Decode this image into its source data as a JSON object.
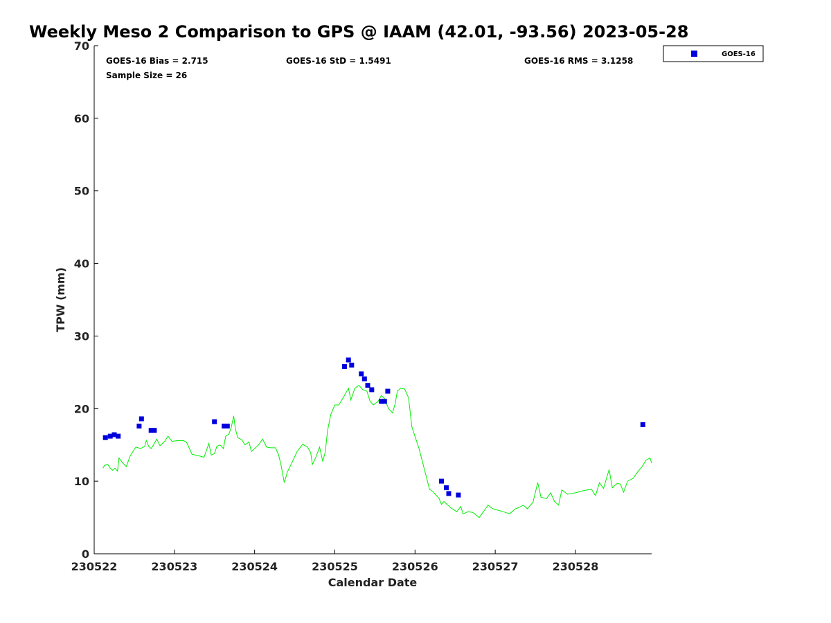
{
  "chart_data": {
    "type": "scatter",
    "title": "Weekly Meso 2 Comparison to GPS @ IAAM (42.01, -93.56) 2023-05-28",
    "xlabel": "Calendar Date",
    "ylabel": "TPW (mm)",
    "xlim": [
      230522,
      230528.95
    ],
    "ylim": [
      0,
      70
    ],
    "x_tick_labels": [
      "230522",
      "230523",
      "230524",
      "230525",
      "230526",
      "230527",
      "230528"
    ],
    "y_tick_labels": [
      "0",
      "10",
      "20",
      "30",
      "40",
      "50",
      "60",
      "70"
    ],
    "grid": false,
    "legend_position": "top-right",
    "stats": {
      "bias": "GOES-16 Bias = 2.715",
      "std": "GOES-16 StD = 1.5491",
      "rms": "GOES-16 RMS = 3.1258",
      "sample_size": "Sample Size = 26"
    },
    "series": [
      {
        "name": "GOES-16",
        "marker": "square",
        "color": "#0000dd",
        "points": [
          [
            230522.14,
            16.0
          ],
          [
            230522.2,
            16.2
          ],
          [
            230522.25,
            16.4
          ],
          [
            230522.3,
            16.2
          ],
          [
            230522.56,
            17.6
          ],
          [
            230522.59,
            18.6
          ],
          [
            230522.71,
            17.0
          ],
          [
            230522.75,
            17.0
          ],
          [
            230523.5,
            18.2
          ],
          [
            230523.62,
            17.6
          ],
          [
            230523.66,
            17.6
          ],
          [
            230525.12,
            25.8
          ],
          [
            230525.17,
            26.7
          ],
          [
            230525.21,
            26.0
          ],
          [
            230525.33,
            24.8
          ],
          [
            230525.37,
            24.1
          ],
          [
            230525.41,
            23.2
          ],
          [
            230525.46,
            22.6
          ],
          [
            230525.58,
            21.0
          ],
          [
            230525.62,
            21.0
          ],
          [
            230525.66,
            22.4
          ],
          [
            230526.33,
            10.0
          ],
          [
            230526.39,
            9.1
          ],
          [
            230526.42,
            8.3
          ],
          [
            230526.54,
            8.1
          ],
          [
            230528.84,
            17.8
          ]
        ]
      },
      {
        "role": "gps-reference-line",
        "color": "#00ee00",
        "points": [
          [
            230522.11,
            11.8
          ],
          [
            230522.13,
            12.2
          ],
          [
            230522.17,
            12.3
          ],
          [
            230522.2,
            11.8
          ],
          [
            230522.23,
            11.5
          ],
          [
            230522.26,
            11.8
          ],
          [
            230522.29,
            11.4
          ],
          [
            230522.31,
            13.2
          ],
          [
            230522.35,
            12.6
          ],
          [
            230522.4,
            12.0
          ],
          [
            230522.45,
            13.5
          ],
          [
            230522.52,
            14.7
          ],
          [
            230522.58,
            14.5
          ],
          [
            230522.63,
            14.8
          ],
          [
            230522.65,
            15.6
          ],
          [
            230522.68,
            14.8
          ],
          [
            230522.71,
            14.5
          ],
          [
            230522.74,
            15.0
          ],
          [
            230522.78,
            15.8
          ],
          [
            230522.82,
            14.9
          ],
          [
            230522.88,
            15.5
          ],
          [
            230522.92,
            16.2
          ],
          [
            230522.97,
            15.5
          ],
          [
            230523.05,
            15.6
          ],
          [
            230523.11,
            15.6
          ],
          [
            230523.15,
            15.4
          ],
          [
            230523.22,
            13.7
          ],
          [
            230523.3,
            13.5
          ],
          [
            230523.37,
            13.3
          ],
          [
            230523.43,
            15.2
          ],
          [
            230523.46,
            13.6
          ],
          [
            230523.5,
            13.8
          ],
          [
            230523.53,
            14.8
          ],
          [
            230523.57,
            15.0
          ],
          [
            230523.61,
            14.5
          ],
          [
            230523.64,
            16.2
          ],
          [
            230523.68,
            16.5
          ],
          [
            230523.71,
            17.5
          ],
          [
            230523.74,
            19.0
          ],
          [
            230523.76,
            17.2
          ],
          [
            230523.79,
            16.0
          ],
          [
            230523.84,
            15.7
          ],
          [
            230523.88,
            15.0
          ],
          [
            230523.93,
            15.4
          ],
          [
            230523.96,
            14.1
          ],
          [
            230524.05,
            15.0
          ],
          [
            230524.1,
            15.8
          ],
          [
            230524.15,
            14.7
          ],
          [
            230524.2,
            14.6
          ],
          [
            230524.26,
            14.6
          ],
          [
            230524.3,
            13.6
          ],
          [
            230524.33,
            12.2
          ],
          [
            230524.37,
            9.8
          ],
          [
            230524.41,
            11.3
          ],
          [
            230524.48,
            12.9
          ],
          [
            230524.53,
            14.1
          ],
          [
            230524.6,
            15.1
          ],
          [
            230524.66,
            14.7
          ],
          [
            230524.7,
            13.9
          ],
          [
            230524.72,
            12.3
          ],
          [
            230524.76,
            13.2
          ],
          [
            230524.81,
            14.7
          ],
          [
            230524.85,
            12.7
          ],
          [
            230524.88,
            14.0
          ],
          [
            230524.91,
            17.0
          ],
          [
            230524.95,
            19.2
          ],
          [
            230525.0,
            20.5
          ],
          [
            230525.05,
            20.5
          ],
          [
            230525.12,
            21.8
          ],
          [
            230525.17,
            22.8
          ],
          [
            230525.2,
            21.2
          ],
          [
            230525.25,
            22.8
          ],
          [
            230525.3,
            23.2
          ],
          [
            230525.35,
            22.6
          ],
          [
            230525.4,
            22.4
          ],
          [
            230525.44,
            21.0
          ],
          [
            230525.48,
            20.5
          ],
          [
            230525.54,
            21.0
          ],
          [
            230525.58,
            21.8
          ],
          [
            230525.62,
            21.4
          ],
          [
            230525.67,
            20.0
          ],
          [
            230525.72,
            19.4
          ],
          [
            230525.75,
            20.6
          ],
          [
            230525.78,
            22.4
          ],
          [
            230525.82,
            22.8
          ],
          [
            230525.87,
            22.7
          ],
          [
            230525.92,
            21.5
          ],
          [
            230525.96,
            17.5
          ],
          [
            230526.05,
            14.5
          ],
          [
            230526.12,
            11.5
          ],
          [
            230526.18,
            8.9
          ],
          [
            230526.23,
            8.5
          ],
          [
            230526.3,
            7.6
          ],
          [
            230526.33,
            6.8
          ],
          [
            230526.36,
            7.2
          ],
          [
            230526.4,
            6.8
          ],
          [
            230526.45,
            6.3
          ],
          [
            230526.52,
            5.8
          ],
          [
            230526.57,
            6.5
          ],
          [
            230526.6,
            5.5
          ],
          [
            230526.66,
            5.8
          ],
          [
            230526.72,
            5.7
          ],
          [
            230526.8,
            5.0
          ],
          [
            230526.86,
            5.9
          ],
          [
            230526.91,
            6.7
          ],
          [
            230526.97,
            6.2
          ],
          [
            230527.1,
            5.8
          ],
          [
            230527.18,
            5.5
          ],
          [
            230527.25,
            6.2
          ],
          [
            230527.3,
            6.4
          ],
          [
            230527.35,
            6.7
          ],
          [
            230527.4,
            6.2
          ],
          [
            230527.47,
            7.1
          ],
          [
            230527.53,
            9.8
          ],
          [
            230527.57,
            7.8
          ],
          [
            230527.64,
            7.6
          ],
          [
            230527.69,
            8.4
          ],
          [
            230527.74,
            7.2
          ],
          [
            230527.79,
            6.7
          ],
          [
            230527.83,
            8.8
          ],
          [
            230527.9,
            8.2
          ],
          [
            230528.0,
            8.4
          ],
          [
            230528.1,
            8.7
          ],
          [
            230528.2,
            8.9
          ],
          [
            230528.25,
            8.0
          ],
          [
            230528.3,
            9.8
          ],
          [
            230528.35,
            9.0
          ],
          [
            230528.42,
            11.6
          ],
          [
            230528.46,
            9.1
          ],
          [
            230528.52,
            9.7
          ],
          [
            230528.56,
            9.6
          ],
          [
            230528.6,
            8.5
          ],
          [
            230528.65,
            10.0
          ],
          [
            230528.72,
            10.4
          ],
          [
            230528.77,
            11.2
          ],
          [
            230528.83,
            12.0
          ],
          [
            230528.88,
            12.9
          ],
          [
            230528.93,
            13.2
          ],
          [
            230528.95,
            12.5
          ]
        ]
      }
    ]
  }
}
